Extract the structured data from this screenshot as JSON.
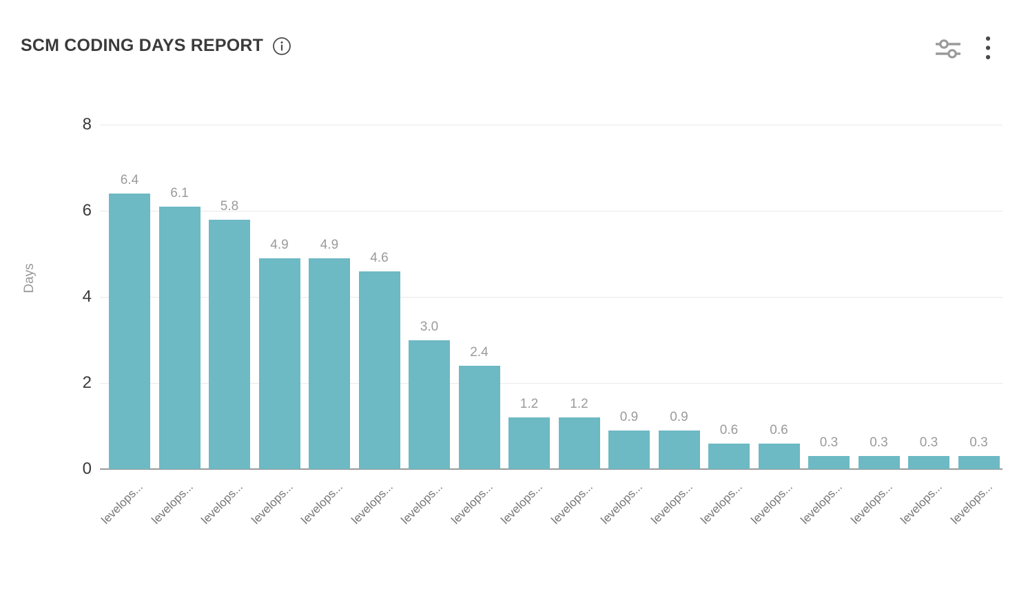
{
  "header": {
    "title": "SCM CODING DAYS REPORT",
    "icons": {
      "info": "info-icon",
      "filters": "sliders-filter-icon",
      "more": "kebab-menu-icon"
    }
  },
  "colors": {
    "bar": "#6db9c4",
    "gridline": "#e9e9e9",
    "axis_line": "#999999",
    "tick_text": "#3a3a3a",
    "value_label": "#9a9a9a",
    "category_label": "#757575",
    "title_text": "#3b3b3b"
  },
  "chart_data": {
    "type": "bar",
    "title": "SCM CODING DAYS REPORT",
    "xlabel": "",
    "ylabel": "Days",
    "ylim": [
      0,
      8
    ],
    "y_ticks": [
      0,
      2,
      4,
      6,
      8
    ],
    "grid": true,
    "legend": false,
    "categories": [
      "levelops...",
      "levelops...",
      "levelops...",
      "levelops...",
      "levelops...",
      "levelops...",
      "levelops...",
      "levelops...",
      "levelops...",
      "levelops...",
      "levelops...",
      "levelops...",
      "levelops...",
      "levelops...",
      "levelops...",
      "levelops...",
      "levelops...",
      "levelops..."
    ],
    "values": [
      6.4,
      6.1,
      5.8,
      4.9,
      4.9,
      4.6,
      3.0,
      2.4,
      1.2,
      1.2,
      0.9,
      0.9,
      0.6,
      0.6,
      0.3,
      0.3,
      0.3,
      0.3
    ],
    "value_labels": [
      "6.4",
      "6.1",
      "5.8",
      "4.9",
      "4.9",
      "4.6",
      "3.0",
      "2.4",
      "1.2",
      "1.2",
      "0.9",
      "0.9",
      "0.6",
      "0.6",
      "0.3",
      "0.3",
      "0.3",
      "0.3"
    ]
  }
}
